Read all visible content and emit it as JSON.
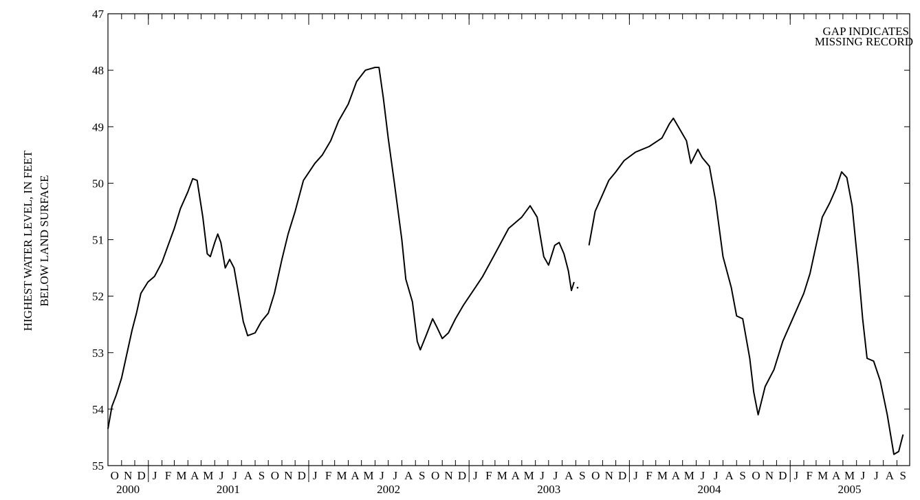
{
  "chart_data": {
    "type": "line",
    "title": "",
    "ylabel_lines": [
      "HIGHEST WATER LEVEL, IN FEET",
      "BELOW LAND SURFACE"
    ],
    "xlabel": "",
    "annotation": [
      "GAP INDICATES",
      "MISSING RECORD"
    ],
    "ylim": [
      47,
      55
    ],
    "y_inverted": true,
    "yticks": [
      47,
      48,
      49,
      50,
      51,
      52,
      53,
      54,
      55
    ],
    "xlim": [
      "2000-10-01",
      "2005-09-30"
    ],
    "month_labels": [
      "O",
      "N",
      "D",
      "J",
      "F",
      "M",
      "A",
      "M",
      "J",
      "J",
      "A",
      "S",
      "O",
      "N",
      "D",
      "J",
      "F",
      "M",
      "A",
      "M",
      "J",
      "J",
      "A",
      "S",
      "O",
      "N",
      "D",
      "J",
      "F",
      "M",
      "A",
      "M",
      "J",
      "J",
      "A",
      "S",
      "O",
      "N",
      "D",
      "J",
      "F",
      "M",
      "A",
      "M",
      "J",
      "J",
      "A",
      "S",
      "O",
      "N",
      "D",
      "J",
      "F",
      "M",
      "A",
      "M",
      "J",
      "J",
      "A",
      "S"
    ],
    "year_labels": [
      "2000",
      "2001",
      "2002",
      "2003",
      "2004",
      "2005"
    ],
    "line_color": "#000000",
    "series": [
      {
        "values": [
          [
            "2000-10-01",
            54.35
          ],
          [
            "2000-10-10",
            53.95
          ],
          [
            "2000-10-20",
            53.75
          ],
          [
            "2000-11-01",
            53.45
          ],
          [
            "2000-11-15",
            52.95
          ],
          [
            "2000-11-25",
            52.6
          ],
          [
            "2000-12-05",
            52.3
          ],
          [
            "2000-12-15",
            51.95
          ],
          [
            "2000-12-31",
            51.75
          ],
          [
            "2001-01-15",
            51.65
          ],
          [
            "2001-02-01",
            51.4
          ],
          [
            "2001-02-15",
            51.1
          ],
          [
            "2001-03-01",
            50.8
          ],
          [
            "2001-03-15",
            50.45
          ],
          [
            "2001-04-01",
            50.15
          ],
          [
            "2001-04-12",
            49.92
          ],
          [
            "2001-04-22",
            49.95
          ],
          [
            "2001-05-05",
            50.6
          ],
          [
            "2001-05-15",
            51.25
          ],
          [
            "2001-05-22",
            51.3
          ],
          [
            "2001-06-01",
            51.05
          ],
          [
            "2001-06-08",
            50.9
          ],
          [
            "2001-06-15",
            51.05
          ],
          [
            "2001-06-25",
            51.5
          ],
          [
            "2001-07-05",
            51.35
          ],
          [
            "2001-07-15",
            51.5
          ],
          [
            "2001-07-25",
            51.95
          ],
          [
            "2001-08-05",
            52.45
          ],
          [
            "2001-08-15",
            52.7
          ],
          [
            "2001-09-01",
            52.65
          ],
          [
            "2001-09-15",
            52.45
          ],
          [
            "2001-10-01",
            52.3
          ],
          [
            "2001-10-15",
            51.95
          ],
          [
            "2001-11-01",
            51.35
          ],
          [
            "2001-11-15",
            50.9
          ],
          [
            "2001-12-01",
            50.5
          ],
          [
            "2001-12-20",
            49.95
          ],
          [
            "2002-01-15",
            49.65
          ],
          [
            "2002-02-01",
            49.5
          ],
          [
            "2002-02-20",
            49.25
          ],
          [
            "2002-03-10",
            48.9
          ],
          [
            "2002-04-01",
            48.6
          ],
          [
            "2002-04-20",
            48.2
          ],
          [
            "2002-05-10",
            48.0
          ],
          [
            "2002-06-01",
            47.95
          ],
          [
            "2002-06-10",
            47.95
          ],
          [
            "2002-06-20",
            48.5
          ],
          [
            "2002-07-01",
            49.2
          ],
          [
            "2002-07-15",
            50.0
          ],
          [
            "2002-08-01",
            51.0
          ],
          [
            "2002-08-10",
            51.7
          ],
          [
            "2002-08-25",
            52.1
          ],
          [
            "2002-09-05",
            52.8
          ],
          [
            "2002-09-12",
            52.95
          ],
          [
            "2002-09-25",
            52.7
          ],
          [
            "2002-10-10",
            52.4
          ],
          [
            "2002-10-20",
            52.55
          ],
          [
            "2002-11-01",
            52.75
          ],
          [
            "2002-11-15",
            52.65
          ],
          [
            "2002-12-01",
            52.4
          ],
          [
            "2002-12-20",
            52.15
          ],
          [
            "2003-01-15",
            51.85
          ],
          [
            "2003-02-01",
            51.65
          ],
          [
            "2003-03-01",
            51.25
          ],
          [
            "2003-04-01",
            50.8
          ],
          [
            "2003-05-01",
            50.6
          ],
          [
            "2003-05-20",
            50.4
          ],
          [
            "2003-06-05",
            50.6
          ],
          [
            "2003-06-20",
            51.3
          ],
          [
            "2003-07-01",
            51.45
          ],
          [
            "2003-07-15",
            51.1
          ],
          [
            "2003-07-25",
            51.05
          ],
          [
            "2003-08-05",
            51.25
          ],
          [
            "2003-08-15",
            51.55
          ],
          [
            "2003-08-22",
            51.9
          ],
          [
            "2003-08-28",
            51.75
          ],
          null,
          [
            "2003-09-05",
            51.85
          ],
          null,
          [
            "2003-10-01",
            51.1
          ],
          [
            "2003-10-15",
            50.5
          ],
          [
            "2003-11-01",
            50.2
          ],
          [
            "2003-11-15",
            49.95
          ],
          [
            "2003-12-01",
            49.8
          ],
          [
            "2003-12-20",
            49.6
          ],
          [
            "2004-01-15",
            49.45
          ],
          [
            "2004-02-15",
            49.35
          ],
          [
            "2004-03-15",
            49.2
          ],
          [
            "2004-04-01",
            48.95
          ],
          [
            "2004-04-10",
            48.85
          ],
          [
            "2004-04-25",
            49.05
          ],
          [
            "2004-05-10",
            49.25
          ],
          [
            "2004-05-20",
            49.65
          ],
          [
            "2004-06-05",
            49.4
          ],
          [
            "2004-06-15",
            49.55
          ],
          [
            "2004-07-01",
            49.7
          ],
          [
            "2004-07-15",
            50.3
          ],
          [
            "2004-08-01",
            51.3
          ],
          [
            "2004-08-20",
            51.85
          ],
          [
            "2004-09-01",
            52.35
          ],
          [
            "2004-09-15",
            52.4
          ],
          [
            "2004-10-01",
            53.1
          ],
          [
            "2004-10-10",
            53.7
          ],
          [
            "2004-10-20",
            54.1
          ],
          [
            "2004-11-05",
            53.6
          ],
          [
            "2004-11-25",
            53.3
          ],
          [
            "2004-12-15",
            52.8
          ],
          [
            "2005-01-01",
            52.5
          ],
          [
            "2005-01-15",
            52.25
          ],
          [
            "2005-02-01",
            51.95
          ],
          [
            "2005-02-15",
            51.6
          ],
          [
            "2005-03-01",
            51.1
          ],
          [
            "2005-03-15",
            50.6
          ],
          [
            "2005-04-01",
            50.35
          ],
          [
            "2005-04-15",
            50.1
          ],
          [
            "2005-04-28",
            49.8
          ],
          [
            "2005-05-10",
            49.9
          ],
          [
            "2005-05-22",
            50.4
          ],
          [
            "2005-06-05",
            51.5
          ],
          [
            "2005-06-15",
            52.4
          ],
          [
            "2005-06-25",
            53.1
          ],
          [
            "2005-07-10",
            53.15
          ],
          [
            "2005-07-25",
            53.5
          ],
          [
            "2005-08-10",
            54.1
          ],
          [
            "2005-08-25",
            54.8
          ],
          [
            "2005-09-05",
            54.75
          ],
          [
            "2005-09-15",
            54.45
          ]
        ]
      }
    ]
  }
}
